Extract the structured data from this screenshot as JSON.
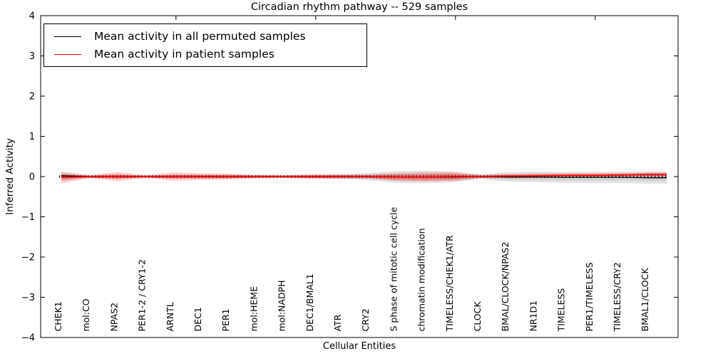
{
  "chart_data": {
    "type": "line",
    "title": "Circadian rhythm pathway -- 529 samples",
    "xlabel": "Cellular Entities",
    "ylabel": "Inferred Activity",
    "ylim": [
      -4,
      4
    ],
    "yticks": {
      "values": [
        4,
        3,
        2,
        1,
        0,
        -1,
        -2,
        -3,
        -4
      ],
      "labels": [
        "4",
        "3",
        "2",
        "1",
        "0",
        "−1",
        "−2",
        "−3",
        "−4"
      ]
    },
    "grid": false,
    "legend_position": "upper left",
    "zero_line_style": "dotted-black",
    "categories": [
      "CHEK1",
      "mol:CO",
      "NPAS2",
      "PER1-2 / CRY1-2",
      "ARNTL",
      "DEC1",
      "PER1",
      "mol:HEME",
      "mol:NADPH",
      "DEC1/BMAL1",
      "ATR",
      "CRY2",
      "S phase of mitotic cell cycle",
      "chromatin modification",
      "TIMELESS/CHEK1/ATR",
      "CLOCK",
      "BMAL/CLOCK/NPAS2",
      "NR1D1",
      "TIMELESS",
      "PER1/TIMELESS",
      "TIMELESS/CRY2",
      "BMAL1/CLOCK"
    ],
    "series": [
      {
        "name": "Mean activity in all permuted samples",
        "color": "#000000",
        "band_color": "#aaaaaa",
        "values": [
          0.02,
          0,
          0,
          0,
          0,
          0,
          0,
          0,
          0,
          0,
          0,
          0,
          -0.01,
          -0.01,
          -0.01,
          0,
          -0.01,
          -0.01,
          -0.02,
          -0.02,
          -0.02,
          -0.03
        ],
        "band_outer": [
          0.08,
          0.02,
          0.05,
          0.025,
          0.05,
          0.05,
          0.05,
          0.035,
          0.03,
          0.04,
          0.06,
          0.09,
          0.15,
          0.16,
          0.13,
          0.06,
          0.12,
          0.13,
          0.14,
          0.14,
          0.14,
          0.15
        ],
        "band_inner": [
          0.05,
          0.015,
          0.03,
          0.015,
          0.03,
          0.03,
          0.03,
          0.02,
          0.02,
          0.025,
          0.035,
          0.05,
          0.09,
          0.09,
          0.08,
          0.035,
          0.07,
          0.08,
          0.08,
          0.08,
          0.08,
          0.09
        ]
      },
      {
        "name": "Mean activity in patient samples",
        "color": "#ff0000",
        "band_color": "#ff0000",
        "values": [
          -0.02,
          0,
          0,
          0,
          0,
          0,
          0,
          0,
          0,
          0,
          0,
          0,
          -0.01,
          -0.01,
          0,
          0,
          0.01,
          0.02,
          0.03,
          0.03,
          0.04,
          0.05
        ],
        "band_outer": [
          0.15,
          0.045,
          0.11,
          0.04,
          0.1,
          0.085,
          0.075,
          0.05,
          0.04,
          0.065,
          0.055,
          0.055,
          0.1,
          0.12,
          0.12,
          0.045,
          0.06,
          0.06,
          0.055,
          0.055,
          0.055,
          0.06
        ],
        "band_inner": [
          0.08,
          0.025,
          0.06,
          0.02,
          0.05,
          0.045,
          0.04,
          0.025,
          0.02,
          0.035,
          0.03,
          0.03,
          0.06,
          0.07,
          0.07,
          0.025,
          0.03,
          0.03,
          0.03,
          0.03,
          0.03,
          0.035
        ]
      }
    ]
  },
  "legend": {
    "entries": [
      {
        "label": "Mean activity in all permuted samples",
        "color": "#000000"
      },
      {
        "label": "Mean activity in patient samples",
        "color": "#ff0000"
      }
    ]
  }
}
